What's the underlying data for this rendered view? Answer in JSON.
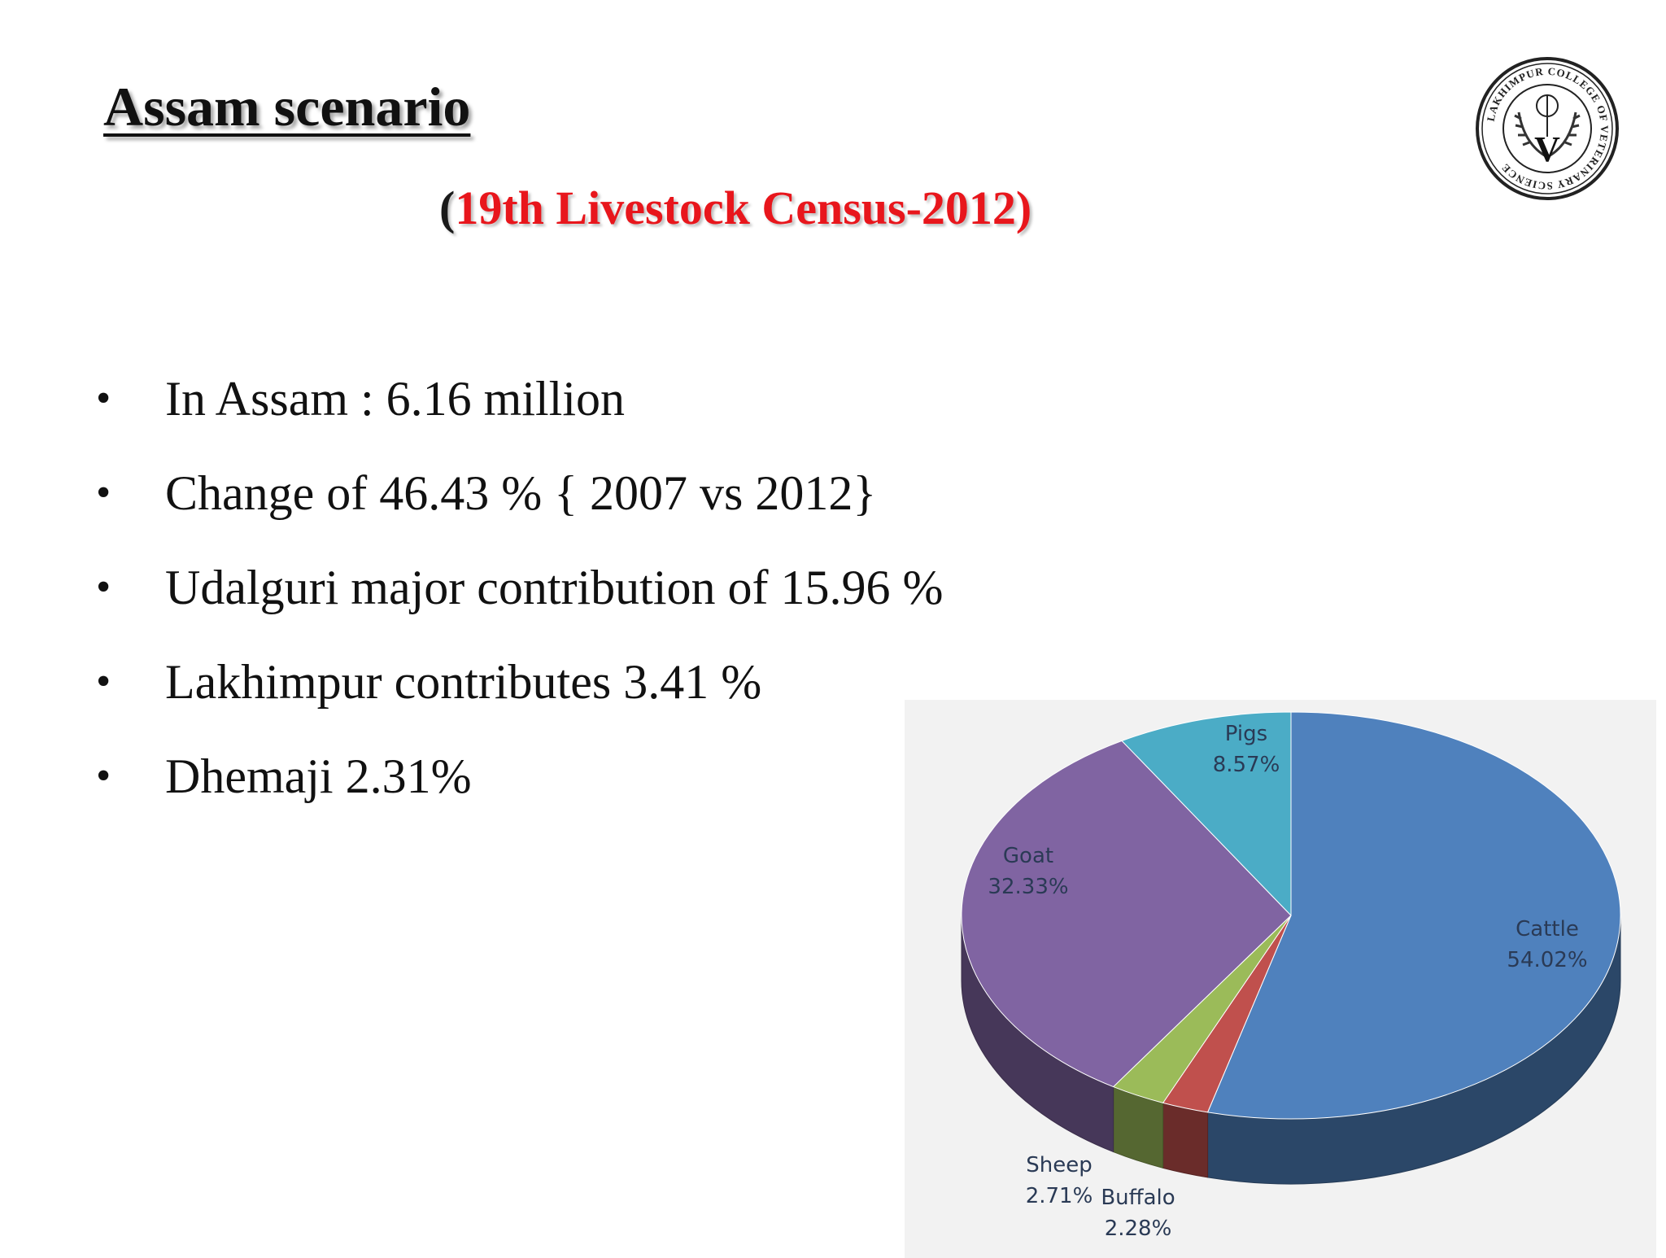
{
  "slide": {
    "title": "Assam scenario",
    "subtitle_open": "(",
    "subtitle_rest": "19th Livestock Census-2012)"
  },
  "bullets": [
    "In Assam : 6.16 million",
    "Change of 46.43 % { 2007 vs 2012}",
    "Udalguri major contribution of 15.96 %",
    "Lakhimpur contributes 3.41 %",
    "Dhemaji 2.31%"
  ],
  "logo": {
    "ring_text": "LAKHIMPUR COLLEGE OF VETERINARY SCIENCE",
    "letter": "V"
  },
  "colors": {
    "subtitle": "#e8161c",
    "cattle": "#4f81bd",
    "buffalo": "#c0504d",
    "sheep": "#9bbb59",
    "goat": "#8064a2",
    "pigs": "#4bacc6"
  },
  "chart_data": {
    "type": "pie",
    "style": "3d",
    "title": "",
    "legend": "none",
    "slices": [
      {
        "name": "Cattle",
        "value": 54.02,
        "label": "54.02%",
        "color": "#4f81bd"
      },
      {
        "name": "Buffalo",
        "value": 2.28,
        "label": "2.28%",
        "color": "#c0504d"
      },
      {
        "name": "Sheep",
        "value": 2.71,
        "label": "2.71%",
        "color": "#9bbb59"
      },
      {
        "name": "Goat",
        "value": 32.33,
        "label": "32.33%",
        "color": "#8064a2"
      },
      {
        "name": "Pigs",
        "value": 8.57,
        "label": "8.57%",
        "color": "#4bacc6"
      }
    ]
  }
}
